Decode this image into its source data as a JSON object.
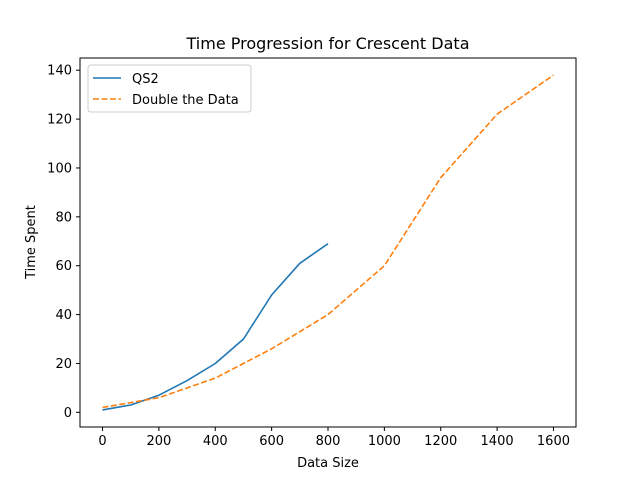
{
  "chart_data": {
    "type": "line",
    "title": "Time Progression for Crescent Data",
    "xlabel": "Data Size",
    "ylabel": "Time Spent",
    "xlim": [
      -80,
      1680
    ],
    "ylim": [
      -6,
      145
    ],
    "xticks": [
      0,
      200,
      400,
      600,
      800,
      1000,
      1200,
      1400,
      1600
    ],
    "yticks": [
      0,
      20,
      40,
      60,
      80,
      100,
      120,
      140
    ],
    "grid": false,
    "legend_position": "top-left",
    "series": [
      {
        "name": "QS2",
        "color": "#1f77b4",
        "linestyle": "solid",
        "x": [
          0,
          100,
          200,
          300,
          400,
          500,
          600,
          700,
          800
        ],
        "y": [
          1,
          3,
          7,
          13,
          20,
          30,
          48,
          61,
          69
        ]
      },
      {
        "name": "Double the Data",
        "color": "#ff7f0e",
        "linestyle": "dashed",
        "x": [
          0,
          200,
          400,
          600,
          800,
          1000,
          1200,
          1400,
          1600
        ],
        "y": [
          2,
          6,
          14,
          26,
          40,
          60,
          96,
          122,
          138
        ]
      }
    ]
  }
}
